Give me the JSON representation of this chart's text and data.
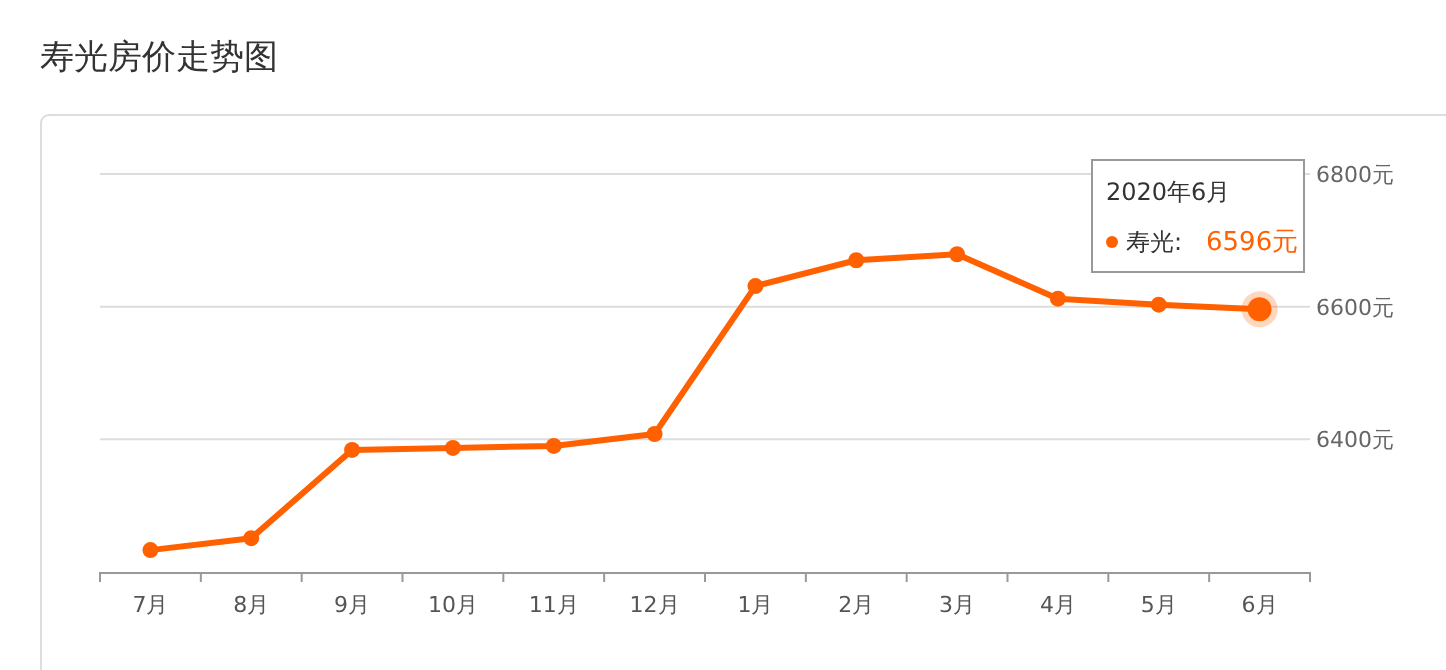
{
  "chart_data": {
    "type": "line",
    "title": "寿光房价走势图",
    "categories": [
      "7月",
      "8月",
      "9月",
      "10月",
      "11月",
      "12月",
      "1月",
      "2月",
      "3月",
      "4月",
      "5月",
      "6月"
    ],
    "series": [
      {
        "name": "寿光:",
        "color": "#ff6000",
        "values": [
          6233,
          6251,
          6384,
          6387,
          6390,
          6408,
          6631,
          6670,
          6679,
          6612,
          6603,
          6596
        ],
        "value_labels": [
          null,
          null,
          null,
          null,
          null,
          null,
          null,
          null,
          null,
          null,
          null,
          "6596元"
        ]
      }
    ],
    "ylim": [
      6200,
      6800
    ],
    "yticks": [
      {
        "value": 6400,
        "label": "6400元"
      },
      {
        "value": 6600,
        "label": "6600元"
      },
      {
        "value": 6800,
        "label": "6800元"
      }
    ],
    "grid": "y",
    "marker": "circle",
    "line_style": "solid",
    "annotations": [
      "2020年6月"
    ]
  }
}
